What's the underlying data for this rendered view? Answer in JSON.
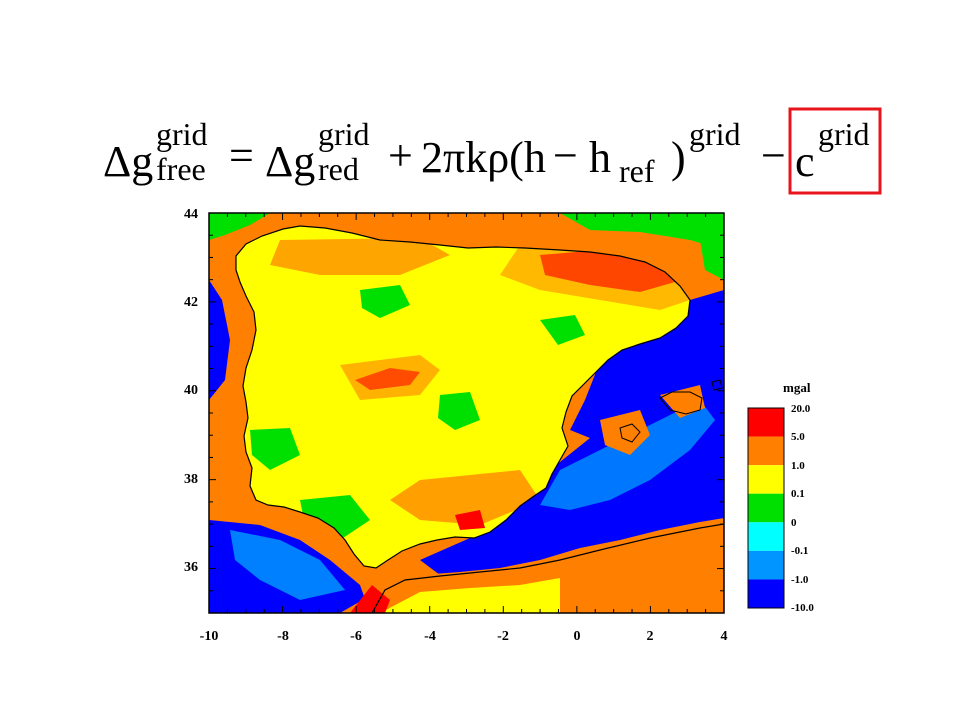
{
  "formula": {
    "lhs_symbol": "Δg",
    "lhs_sup": "grid",
    "lhs_sub": "free",
    "equals": "=",
    "rhs1_symbol": "Δg",
    "rhs1_sup": "grid",
    "rhs1_sub": "red",
    "plus": "+",
    "term2": "2πkρ(h",
    "minus1": "−",
    "h_ref": "h",
    "h_ref_sub": "ref",
    "close_paren": ")",
    "term2_sup": "grid",
    "minus2": "−",
    "c_symbol": "c",
    "c_sup": "grid",
    "highlight_color": "#e8141b"
  },
  "map": {
    "y_ticks": [
      "44",
      "42",
      "40",
      "38",
      "36"
    ],
    "x_ticks": [
      "-10",
      "-8",
      "-6",
      "-4",
      "-2",
      "0",
      "2",
      "4"
    ],
    "x_range": [
      -10,
      4
    ],
    "y_range": [
      35,
      44
    ]
  },
  "legend": {
    "title": "mgal",
    "labels": [
      "20.0",
      "5.0",
      "1.0",
      "0.1",
      "0",
      "-0.1",
      "-1.0",
      "-10.0"
    ],
    "colors": [
      "#ff0000",
      "#ff7f00",
      "#ffff00",
      "#00e000",
      "#00ffff",
      "#0095ff",
      "#0000ff"
    ]
  },
  "colors": {
    "red": "#ff0000",
    "orange": "#ff7f00",
    "yellow": "#ffff00",
    "green": "#00e000",
    "cyan": "#00ffff",
    "lightblue": "#0095ff",
    "blue": "#0000ff"
  }
}
